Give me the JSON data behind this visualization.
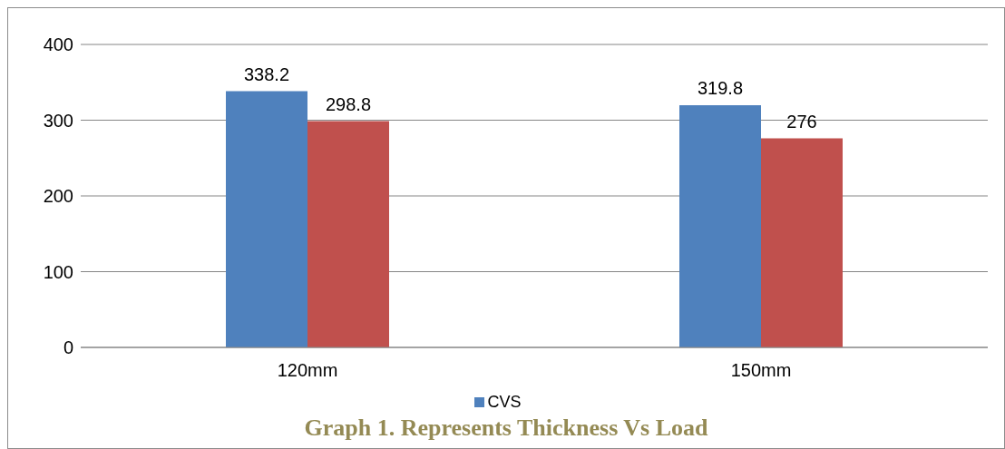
{
  "chart_data": {
    "type": "bar",
    "title": "Graph 1. Represents Thickness Vs Load",
    "categories": [
      "120mm",
      "150mm"
    ],
    "series": [
      {
        "name": "CVS",
        "color": "#4f81bd",
        "values": [
          338.2,
          319.8
        ]
      },
      {
        "color": "#c0504d",
        "values": [
          298.8,
          276
        ]
      }
    ],
    "ylim": [
      0,
      400
    ],
    "yticks": [
      0,
      100,
      200,
      300,
      400
    ],
    "grid": "y",
    "legend": "bottom",
    "data_labels": true
  }
}
